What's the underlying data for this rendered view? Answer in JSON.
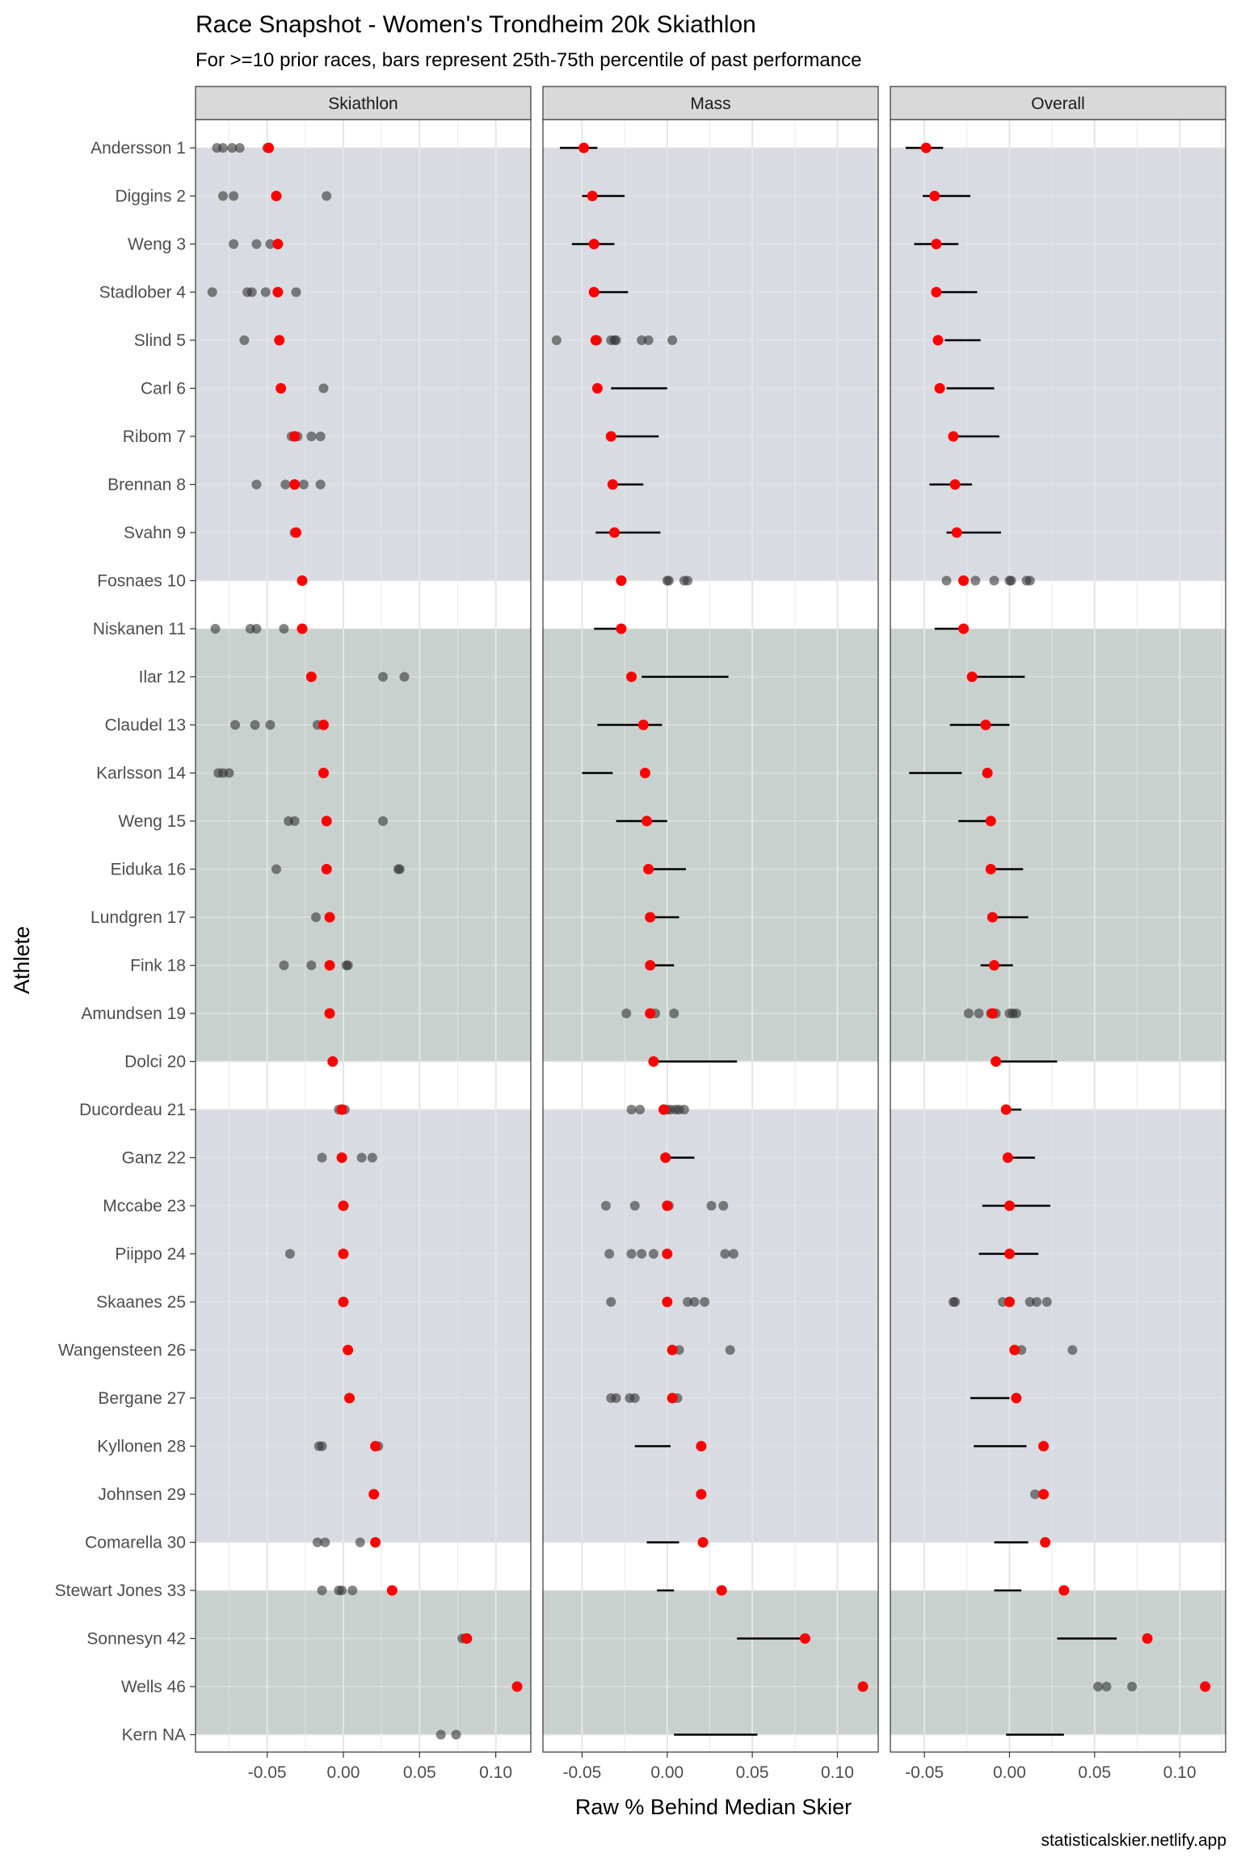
{
  "title": "Race Snapshot -  Women's Trondheim 20k  Skiathlon",
  "subtitle": "For >=10 prior races, bars represent 25th-75th percentile of past performance",
  "caption": "statisticalskier.netlify.app",
  "colors": {
    "current_point": "#ff0000",
    "past_point": "#333333",
    "band_blue": "#d8dce2",
    "band_green": "#c9d1cf",
    "strip_bg": "#d9d9d9",
    "grid": "#e5e5e5"
  },
  "chart_data": {
    "type": "scatter",
    "xlabel": "Raw % Behind Median Skier",
    "ylabel": "Athlete",
    "grid": true,
    "legend": "none",
    "athletes": [
      "Andersson 1",
      "Diggins 2",
      "Weng 3",
      "Stadlober 4",
      "Slind 5",
      "Carl 6",
      "Ribom 7",
      "Brennan 8",
      "Svahn 9",
      "Fosnaes 10",
      "Niskanen 11",
      "Ilar 12",
      "Claudel 13",
      "Karlsson 14",
      "Weng 15",
      "Eiduka 16",
      "Lundgren 17",
      "Fink 18",
      "Amundsen 19",
      "Dolci 20",
      "Ducordeau 21",
      "Ganz 22",
      "Mccabe 23",
      "Piippo 24",
      "Skaanes 25",
      "Wangensteen 26",
      "Bergane 27",
      "Kyllonen 28",
      "Johnsen 29",
      "Comarella 30",
      "Stewart Jones 33",
      "Sonnesyn 42",
      "Wells 46",
      "Kern NA"
    ],
    "bands": [
      {
        "from_rank": 1,
        "to_rank": 10,
        "color": "band_blue"
      },
      {
        "from_rank": 11,
        "to_rank": 20,
        "color": "band_green"
      },
      {
        "from_rank": 21,
        "to_rank": 30,
        "color": "band_blue"
      },
      {
        "from_rank": 31,
        "to_rank": 34,
        "color": "band_green"
      }
    ],
    "panels": [
      {
        "name": "Skiathlon",
        "xlim": [
          -0.097,
          0.123
        ],
        "ticks": [
          -0.05,
          0.0,
          0.05,
          0.1
        ],
        "tick_labels": [
          "-0.05",
          "0.00",
          "0.05",
          "0.10"
        ],
        "current": [
          -0.049,
          -0.044,
          -0.043,
          -0.043,
          -0.042,
          -0.041,
          -0.032,
          -0.032,
          -0.031,
          -0.027,
          -0.027,
          -0.021,
          -0.013,
          -0.013,
          -0.011,
          -0.011,
          -0.009,
          -0.009,
          -0.009,
          -0.007,
          -0.001,
          -0.001,
          0.0,
          0.0,
          0.0,
          0.003,
          0.004,
          0.021,
          0.02,
          0.021,
          0.032,
          0.081,
          0.114,
          null
        ],
        "past": [
          [
            -0.083,
            -0.079,
            -0.073,
            -0.068,
            -0.05
          ],
          [
            -0.079,
            -0.072,
            -0.044,
            -0.011
          ],
          [
            -0.072,
            -0.057,
            -0.048
          ],
          [
            -0.086,
            -0.063,
            -0.06,
            -0.051,
            -0.031
          ],
          [
            -0.065
          ],
          [
            -0.013
          ],
          [
            -0.034,
            -0.03,
            -0.021,
            -0.015
          ],
          [
            -0.057,
            -0.038,
            -0.026,
            -0.015
          ],
          [
            -0.032
          ],
          [],
          [
            -0.084,
            -0.061,
            -0.057,
            -0.039
          ],
          [
            0.026,
            0.04
          ],
          [
            -0.071,
            -0.058,
            -0.048,
            -0.017
          ],
          [
            -0.082,
            -0.079,
            -0.075
          ],
          [
            -0.036,
            -0.032,
            0.026
          ],
          [
            -0.044,
            0.036,
            0.037
          ],
          [
            -0.018
          ],
          [
            -0.039,
            -0.021,
            0.002,
            0.003
          ],
          [],
          [],
          [
            -0.003,
            0.001
          ],
          [
            -0.014,
            0.012,
            0.019
          ],
          [],
          [
            -0.035
          ],
          [],
          [],
          [],
          [
            -0.016,
            -0.014,
            0.023
          ],
          [],
          [
            -0.017,
            -0.012,
            0.011,
            0.021
          ],
          [
            -0.014,
            -0.003,
            -0.001,
            0.006
          ],
          [
            0.078,
            0.08
          ],
          [],
          [
            0.064,
            0.074
          ]
        ],
        "iqr": [
          null,
          null,
          null,
          null,
          null,
          null,
          null,
          null,
          null,
          null,
          null,
          null,
          null,
          null,
          null,
          null,
          null,
          null,
          null,
          null,
          null,
          null,
          null,
          null,
          null,
          null,
          null,
          null,
          null,
          null,
          null,
          null,
          null,
          null
        ]
      },
      {
        "name": "Mass",
        "xlim": [
          -0.073,
          0.124
        ],
        "ticks": [
          -0.05,
          0.0,
          0.05,
          0.1
        ],
        "tick_labels": [
          "-0.05",
          "0.00",
          "0.05",
          "0.10"
        ],
        "current": [
          -0.049,
          -0.044,
          -0.043,
          -0.043,
          -0.042,
          -0.041,
          -0.033,
          -0.032,
          -0.031,
          -0.027,
          -0.027,
          -0.021,
          -0.014,
          -0.013,
          -0.012,
          -0.011,
          -0.01,
          -0.01,
          -0.01,
          -0.008,
          -0.002,
          -0.001,
          0.0,
          0.0,
          0.0,
          0.003,
          0.003,
          0.02,
          0.02,
          0.021,
          0.032,
          0.081,
          0.115,
          null
        ],
        "past": [
          [],
          [],
          [],
          [],
          [
            -0.065,
            -0.042,
            -0.041,
            -0.033,
            -0.031,
            -0.03,
            -0.015,
            -0.011,
            0.003
          ],
          [],
          [],
          [],
          [],
          [
            0.0,
            0.001,
            0.01,
            0.012
          ],
          [],
          [],
          [],
          [],
          [],
          [],
          [],
          [],
          [
            -0.024,
            -0.01,
            -0.007,
            0.004
          ],
          [],
          [
            -0.021,
            -0.016,
            0.0,
            0.002,
            0.005,
            0.007,
            0.01
          ],
          [],
          [
            -0.036,
            -0.019,
            0.001,
            0.026,
            0.033
          ],
          [
            -0.034,
            -0.021,
            -0.015,
            -0.008,
            0.034,
            0.039
          ],
          [
            -0.033,
            0.012,
            0.016,
            0.022
          ],
          [
            0.007,
            0.037
          ],
          [
            -0.033,
            -0.03,
            -0.022,
            -0.019,
            0.003,
            0.006
          ],
          [],
          [],
          [],
          [],
          [],
          [],
          []
        ],
        "iqr": [
          [
            -0.063,
            -0.041
          ],
          [
            -0.05,
            -0.025
          ],
          [
            -0.056,
            -0.031
          ],
          [
            -0.043,
            -0.023
          ],
          null,
          [
            -0.033,
            0.0
          ],
          [
            -0.031,
            -0.005
          ],
          [
            -0.035,
            -0.014
          ],
          [
            -0.042,
            -0.004
          ],
          null,
          [
            -0.043,
            -0.028
          ],
          [
            -0.015,
            0.036
          ],
          [
            -0.041,
            -0.003
          ],
          [
            -0.05,
            -0.032
          ],
          [
            -0.03,
            0.0
          ],
          [
            -0.013,
            0.011
          ],
          [
            -0.007,
            0.007
          ],
          [
            -0.008,
            0.004
          ],
          null,
          [
            -0.006,
            0.041
          ],
          null,
          [
            0.0,
            0.016
          ],
          null,
          null,
          null,
          null,
          null,
          [
            -0.019,
            0.002
          ],
          null,
          [
            -0.012,
            0.007
          ],
          [
            -0.006,
            0.004
          ],
          [
            0.041,
            0.081
          ],
          null,
          [
            0.004,
            0.053
          ]
        ]
      },
      {
        "name": "Overall",
        "xlim": [
          -0.07,
          0.127
        ],
        "ticks": [
          -0.05,
          0.0,
          0.05,
          0.1
        ],
        "tick_labels": [
          "-0.05",
          "0.00",
          "0.05",
          "0.10"
        ],
        "current": [
          -0.049,
          -0.044,
          -0.043,
          -0.043,
          -0.042,
          -0.041,
          -0.033,
          -0.032,
          -0.031,
          -0.027,
          -0.027,
          -0.022,
          -0.014,
          -0.013,
          -0.011,
          -0.011,
          -0.01,
          -0.009,
          -0.01,
          -0.008,
          -0.002,
          -0.001,
          0.0,
          0.0,
          0.0,
          0.003,
          0.004,
          0.02,
          0.02,
          0.021,
          0.032,
          0.081,
          0.115,
          null
        ],
        "past": [
          [],
          [],
          [],
          [],
          [],
          [],
          [],
          [],
          [],
          [
            -0.037,
            -0.02,
            -0.009,
            0.0,
            0.001,
            0.01,
            0.012
          ],
          [],
          [],
          [],
          [],
          [],
          [],
          [],
          [],
          [
            -0.024,
            -0.018,
            -0.011,
            -0.008,
            0.0,
            0.002,
            0.004
          ],
          [],
          [],
          [],
          [],
          [],
          [
            -0.033,
            -0.032,
            -0.004,
            0.012,
            0.016,
            0.022
          ],
          [
            0.007,
            0.037
          ],
          [],
          [],
          [
            0.015
          ],
          [],
          [],
          [],
          [
            0.052,
            0.057,
            0.072
          ],
          []
        ],
        "iqr": [
          [
            -0.061,
            -0.039
          ],
          [
            -0.051,
            -0.023
          ],
          [
            -0.056,
            -0.03
          ],
          [
            -0.044,
            -0.019
          ],
          [
            -0.038,
            -0.017
          ],
          [
            -0.037,
            -0.009
          ],
          [
            -0.033,
            -0.006
          ],
          [
            -0.047,
            -0.022
          ],
          [
            -0.037,
            -0.005
          ],
          null,
          [
            -0.044,
            -0.026
          ],
          [
            -0.024,
            0.009
          ],
          [
            -0.035,
            0.0
          ],
          [
            -0.059,
            -0.028
          ],
          [
            -0.03,
            -0.011
          ],
          [
            -0.012,
            0.008
          ],
          [
            -0.011,
            0.011
          ],
          [
            -0.017,
            0.002
          ],
          null,
          [
            -0.008,
            0.028
          ],
          [
            -0.002,
            0.007
          ],
          [
            -0.003,
            0.015
          ],
          [
            -0.016,
            0.024
          ],
          [
            -0.018,
            0.017
          ],
          null,
          null,
          [
            -0.023,
            0.0
          ],
          [
            -0.021,
            0.01
          ],
          null,
          [
            -0.009,
            0.011
          ],
          [
            -0.009,
            0.007
          ],
          [
            0.028,
            0.063
          ],
          null,
          [
            -0.002,
            0.032
          ]
        ]
      }
    ]
  }
}
